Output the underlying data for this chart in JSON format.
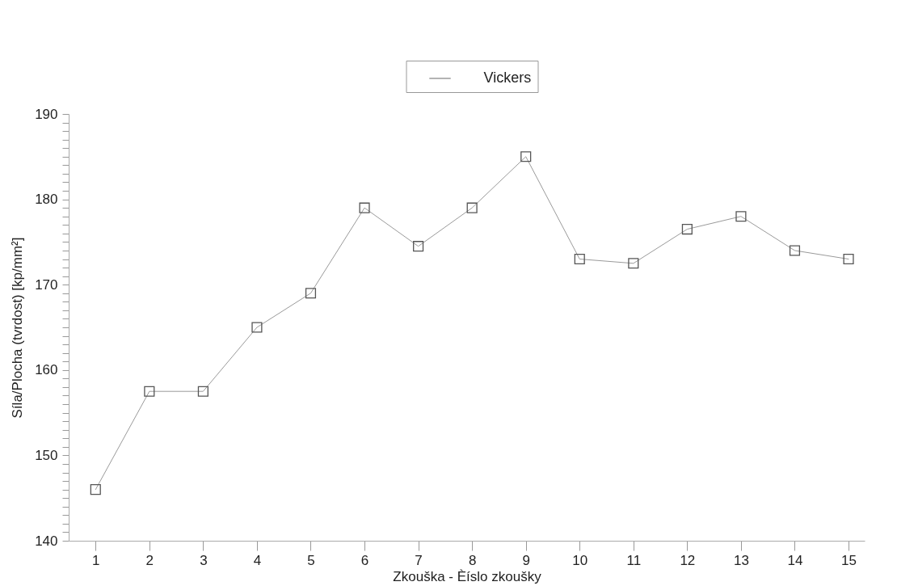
{
  "chart_data": {
    "type": "line",
    "xlabel": "Zkouška - Èíslo zkoušky",
    "ylabel": "Síla/Plocha (tvrdost) [kp/mm²]",
    "x": [
      1,
      2,
      3,
      4,
      5,
      6,
      7,
      8,
      9,
      10,
      11,
      12,
      13,
      14,
      15
    ],
    "series": [
      {
        "name": "Vickers",
        "color": "#9a9a9a",
        "values": [
          146,
          157.5,
          157.5,
          165,
          169,
          179,
          174.5,
          179,
          185,
          173,
          172.5,
          176.5,
          178,
          174,
          173
        ]
      }
    ],
    "xlim": [
      0.5,
      15.3
    ],
    "xticks": [
      1,
      2,
      3,
      4,
      5,
      6,
      7,
      8,
      9,
      10,
      11,
      12,
      13,
      14,
      15
    ],
    "ylim": [
      140,
      190
    ],
    "yticks": [
      140,
      {
        "value": 141,
        "label": null
      },
      {
        "value": 142,
        "label": null
      },
      {
        "value": 143,
        "label": null
      },
      {
        "value": 144,
        "label": null
      },
      {
        "value": 145,
        "label": null
      },
      {
        "value": 146,
        "label": null
      },
      {
        "value": 147,
        "label": null
      },
      {
        "value": 148,
        "label": null
      },
      {
        "value": 149,
        "label": null
      },
      150,
      {
        "value": 151,
        "label": null
      },
      {
        "value": 152,
        "label": null
      },
      {
        "value": 153,
        "label": null
      },
      {
        "value": 154,
        "label": null
      },
      {
        "value": 155,
        "label": null
      },
      {
        "value": 156,
        "label": null
      },
      {
        "value": 157,
        "label": null
      },
      {
        "value": 158,
        "label": null
      },
      {
        "value": 159,
        "label": null
      },
      160,
      {
        "value": 161,
        "label": null
      },
      {
        "value": 162,
        "label": null
      },
      {
        "value": 163,
        "label": null
      },
      {
        "value": 164,
        "label": null
      },
      {
        "value": 165,
        "label": null
      },
      {
        "value": 166,
        "label": null
      },
      {
        "value": 167,
        "label": null
      },
      {
        "value": 168,
        "label": null
      },
      {
        "value": 169,
        "label": null
      },
      170,
      {
        "value": 171,
        "label": null
      },
      {
        "value": 172,
        "label": null
      },
      {
        "value": 173,
        "label": null
      },
      {
        "value": 174,
        "label": null
      },
      {
        "value": 175,
        "label": null
      },
      {
        "value": 176,
        "label": null
      },
      {
        "value": 177,
        "label": null
      },
      {
        "value": 178,
        "label": null
      },
      {
        "value": 179,
        "label": null
      },
      180,
      {
        "value": 181,
        "label": null
      },
      {
        "value": 182,
        "label": null
      },
      {
        "value": 183,
        "label": null
      },
      {
        "value": 184,
        "label": null
      },
      {
        "value": 185,
        "label": null
      },
      {
        "value": 186,
        "label": null
      },
      {
        "value": 187,
        "label": null
      },
      {
        "value": 188,
        "label": null
      },
      {
        "value": 189,
        "label": null
      },
      190
    ],
    "grid": false,
    "legend": "top",
    "marker": "square",
    "line_style": "solid"
  }
}
